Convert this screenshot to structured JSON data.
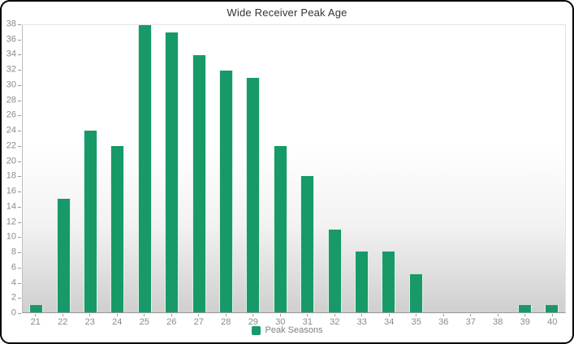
{
  "title": "Wide Receiver Peak Age",
  "legend": {
    "label": "Peak Seasons"
  },
  "colors": {
    "accent_green": "#179a68",
    "title_text": "#333333",
    "axis_label_text": "#8a8a8a",
    "legend_text": "#7f7f7f"
  },
  "chart_data": {
    "type": "bar",
    "title": "Wide Receiver Peak Age",
    "series_name": "Peak Seasons",
    "categories": [
      21,
      22,
      23,
      24,
      25,
      26,
      27,
      28,
      29,
      30,
      31,
      32,
      33,
      34,
      35,
      36,
      37,
      38,
      39,
      40
    ],
    "values": [
      1,
      15,
      24,
      22,
      38,
      37,
      34,
      32,
      31,
      22,
      18,
      11,
      8,
      8,
      5,
      0,
      0,
      0,
      1,
      1
    ],
    "xlabel": "",
    "ylabel": "",
    "ylim": [
      0,
      38
    ],
    "ytick_step": 2,
    "grid": false,
    "legend_position": "bottom-center",
    "bar_color": "#179a68",
    "plot_background": "white-to-gray-gradient"
  }
}
